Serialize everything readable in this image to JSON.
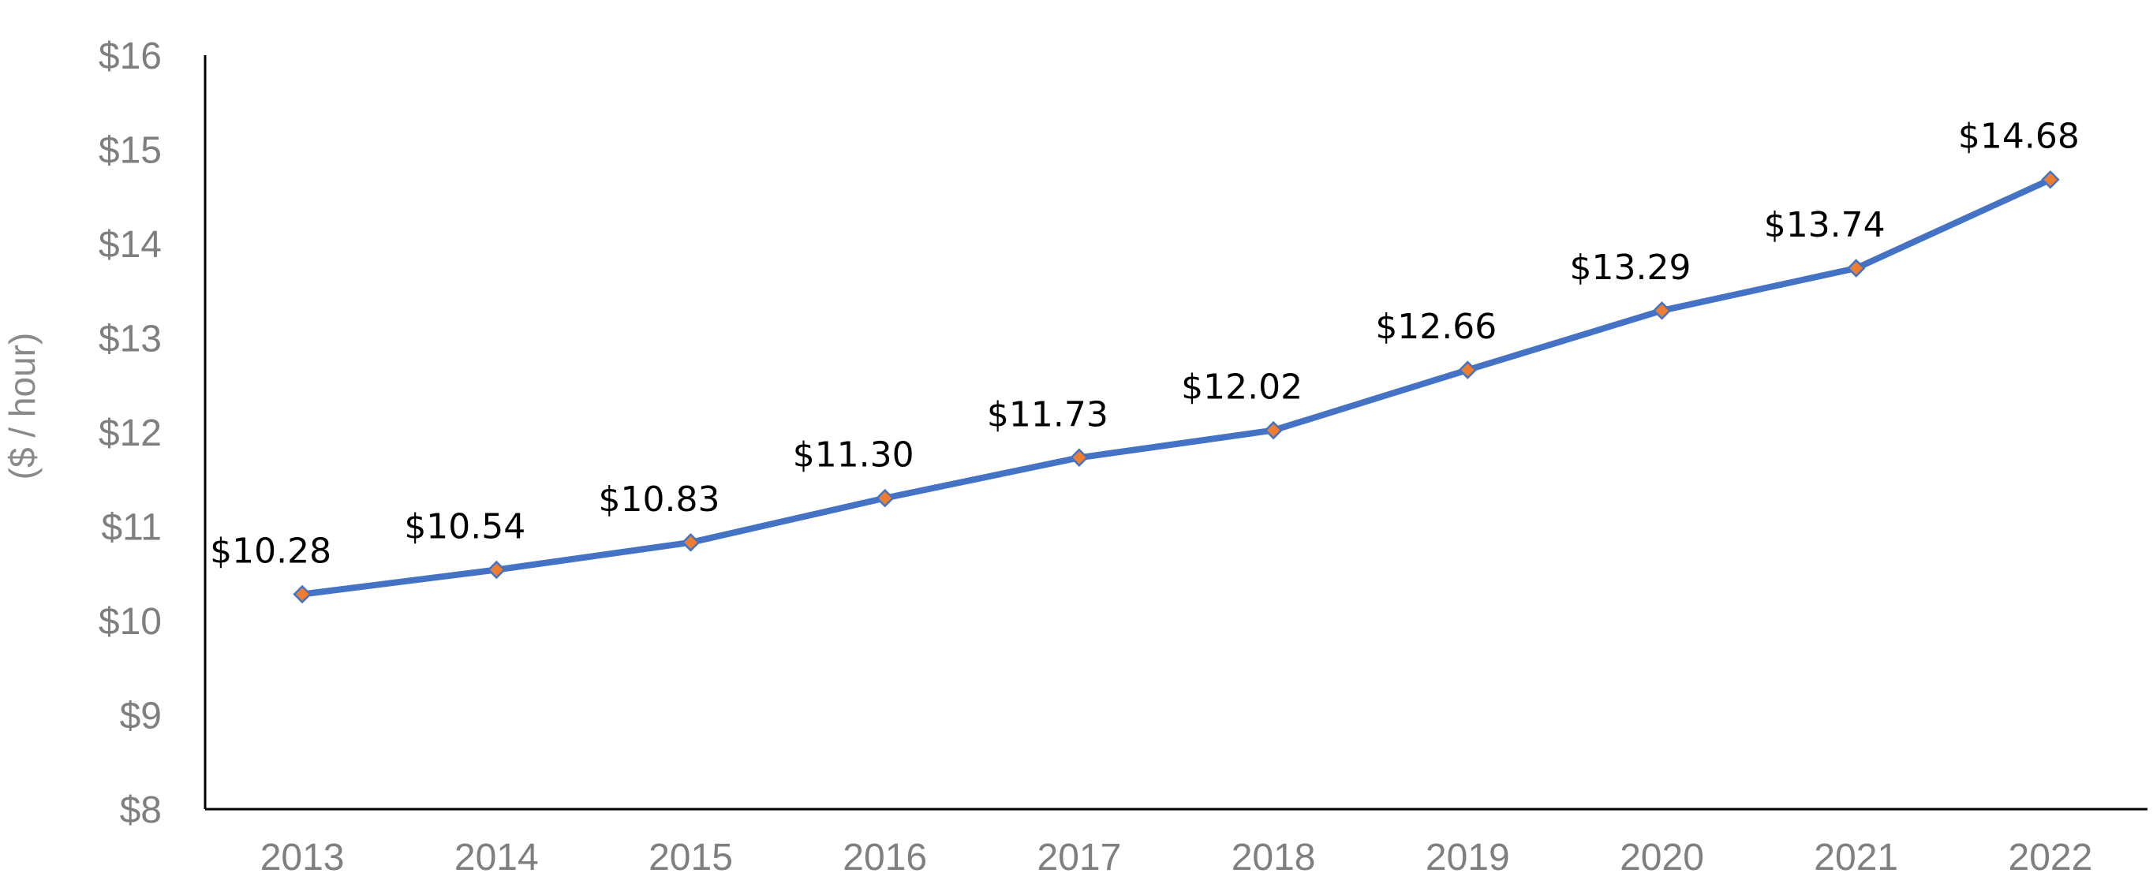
{
  "chart_data": {
    "type": "line",
    "title": "",
    "xlabel": "",
    "ylabel": "($ / hour)",
    "categories": [
      "2013",
      "2014",
      "2015",
      "2016",
      "2017",
      "2018",
      "2019",
      "2020",
      "2021",
      "2022"
    ],
    "series": [
      {
        "values": [
          10.28,
          10.54,
          10.83,
          11.3,
          11.73,
          12.02,
          12.66,
          13.29,
          13.74,
          14.68
        ],
        "data_labels": [
          "$10.28",
          "$10.54",
          "$10.83",
          "$11.30",
          "$11.73",
          "$12.02",
          "$12.66",
          "$13.29",
          "$13.74",
          "$14.68"
        ],
        "line_color": "#4472c4",
        "marker_color": "#ed7d31",
        "marker": "diamond"
      }
    ],
    "ylim": [
      8,
      16
    ],
    "yticks": [
      8,
      9,
      10,
      11,
      12,
      13,
      14,
      15,
      16
    ],
    "ytick_labels": [
      "$8",
      "$9",
      "$10",
      "$11",
      "$12",
      "$13",
      "$14",
      "$15",
      "$16"
    ],
    "grid": false,
    "legend": "none"
  }
}
